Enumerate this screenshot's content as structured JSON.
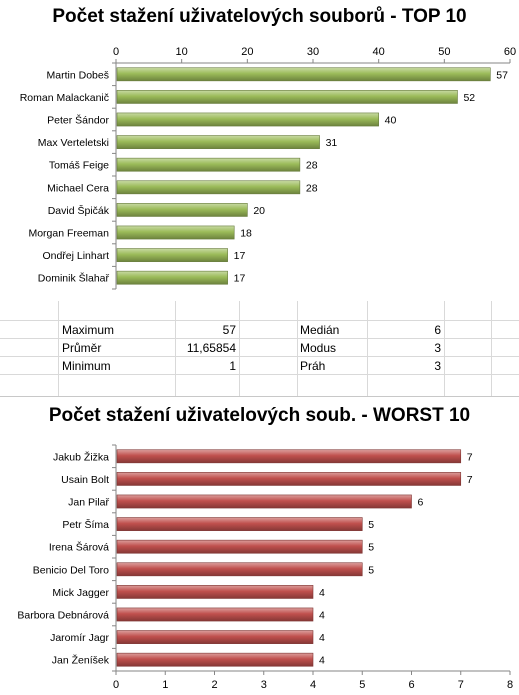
{
  "chart_data": [
    {
      "type": "bar",
      "orientation": "horizontal",
      "title": "Počet stažení uživatelových souborů - TOP 10",
      "categories": [
        "Martin Dobeš",
        "Roman Malackanič",
        "Peter Šándor",
        "Max Verteletski",
        "Tomáš Feige",
        "Michael Cera",
        "David Špičák",
        "Morgan Freeman",
        "Ondřej Linhart",
        "Dominik Šlahař"
      ],
      "values": [
        57,
        52,
        40,
        31,
        28,
        28,
        20,
        18,
        17,
        17
      ],
      "xlim": [
        0,
        60
      ],
      "ticks": [
        "0",
        "10",
        "20",
        "30",
        "40",
        "50",
        "60"
      ],
      "axis_position": "top",
      "bar_color": "#9bbb59",
      "grid": false
    },
    {
      "type": "bar",
      "orientation": "horizontal",
      "title": "Počet stažení uživatelových soub. - WORST 10",
      "categories": [
        "Jakub Žižka",
        "Usain Bolt",
        "Jan Pilař",
        "Petr Šíma",
        "Irena Šárová",
        "Benicio Del Toro",
        "Mick Jagger",
        "Barbora Debnárová",
        "Jaromír Jagr",
        "Jan Ženíšek"
      ],
      "values": [
        7,
        7,
        6,
        5,
        5,
        5,
        4,
        4,
        4,
        4
      ],
      "xlim": [
        0,
        8
      ],
      "ticks": [
        "0",
        "1",
        "2",
        "3",
        "4",
        "5",
        "6",
        "7",
        "8"
      ],
      "axis_position": "bottom",
      "bar_color": "#c0504d",
      "grid": false
    }
  ],
  "stats": {
    "maximum_label": "Maximum",
    "maximum_value": "57",
    "prumer_label": "Průměr",
    "prumer_value": "11,65854",
    "minimum_label": "Minimum",
    "minimum_value": "1",
    "median_label": "Medián",
    "median_value": "6",
    "modus_label": "Modus",
    "modus_value": "3",
    "prah_label": "Práh",
    "prah_value": "3"
  }
}
